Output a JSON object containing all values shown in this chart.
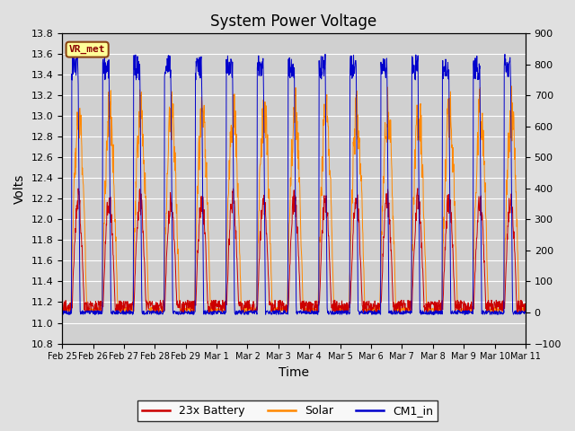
{
  "title": "System Power Voltage",
  "xlabel": "Time",
  "ylabel": "Volts",
  "ylim_left": [
    10.8,
    13.8
  ],
  "ylim_right": [
    -100,
    900
  ],
  "yticks_left": [
    10.8,
    11.0,
    11.2,
    11.4,
    11.6,
    11.8,
    12.0,
    12.2,
    12.4,
    12.6,
    12.8,
    13.0,
    13.2,
    13.4,
    13.6,
    13.8
  ],
  "yticks_right": [
    -100,
    0,
    100,
    200,
    300,
    400,
    500,
    600,
    700,
    800,
    900
  ],
  "background_color": "#e0e0e0",
  "plot_bg_color": "#d0d0d0",
  "grid_color": "#ffffff",
  "annotation_text": "VR_met",
  "annotation_bg": "#ffff99",
  "annotation_border": "#8b4513",
  "annotation_text_color": "#8b0000",
  "colors": {
    "battery": "#cc0000",
    "solar": "#ff8800",
    "cm1": "#0000cc"
  },
  "legend_labels": [
    "23x Battery",
    "Solar",
    "CM1_in"
  ],
  "date_labels": [
    "Feb 25",
    "Feb 26",
    "Feb 27",
    "Feb 28",
    "Feb 29",
    "Mar 1",
    "Mar 2",
    "Mar 3",
    "Mar 4",
    "Mar 5",
    "Mar 6",
    "Mar 7",
    "Mar 8",
    "Mar 9",
    "Mar 10",
    "Mar 11"
  ],
  "x_ticks": [
    0,
    1,
    2,
    3,
    4,
    5,
    6,
    7,
    8,
    9,
    10,
    11,
    12,
    13,
    14,
    15
  ],
  "xlim": [
    0,
    15
  ]
}
